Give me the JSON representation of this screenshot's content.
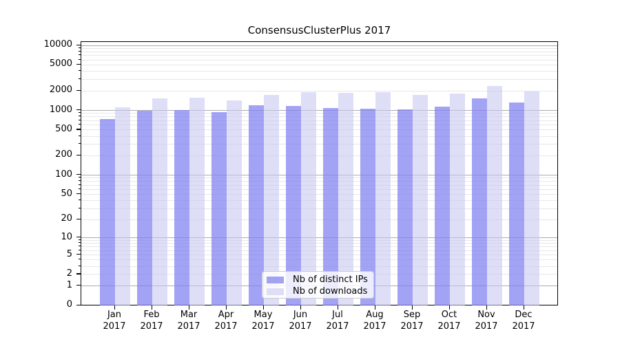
{
  "title": "ConsensusClusterPlus 2017",
  "chart_data": {
    "type": "bar",
    "scale": "log10(1+y)",
    "grid": true,
    "legend_position": "bottom-center-inside",
    "categories": [
      "Jan",
      "Feb",
      "Mar",
      "Apr",
      "May",
      "Jun",
      "Jul",
      "Aug",
      "Sep",
      "Oct",
      "Nov",
      "Dec"
    ],
    "category_year": "2017",
    "x_tick_labels": [
      "Jan\n2017",
      "Feb\n2017",
      "Mar\n2017",
      "Apr\n2017",
      "May\n2017",
      "Jun\n2017",
      "Jul\n2017",
      "Aug\n2017",
      "Sep\n2017",
      "Oct\n2017",
      "Nov\n2017",
      "Dec\n2017"
    ],
    "y_ticks": [
      0,
      1,
      2,
      5,
      10,
      20,
      50,
      100,
      200,
      500,
      1000,
      2000,
      5000,
      10000
    ],
    "ylim": [
      0,
      10000
    ],
    "series": [
      {
        "name": "Nb of distinct IPs",
        "color": "#a3a3f4",
        "fill_rgba": "rgba(128,128,242,0.72)",
        "values": [
          740,
          990,
          1010,
          950,
          1190,
          1180,
          1100,
          1070,
          1040,
          1130,
          1540,
          1310
        ]
      },
      {
        "name": "Nb of downloads",
        "color": "#dedef7",
        "fill_rgba": "rgba(198,198,242,0.58)",
        "values": [
          1110,
          1530,
          1570,
          1420,
          1720,
          1920,
          1860,
          1890,
          1740,
          1840,
          2400,
          1960
        ]
      }
    ],
    "colors": {
      "grid_major": "#ababab",
      "grid_minor": "#e7e7e7",
      "axis": "#000000",
      "background": "#ffffff"
    }
  }
}
